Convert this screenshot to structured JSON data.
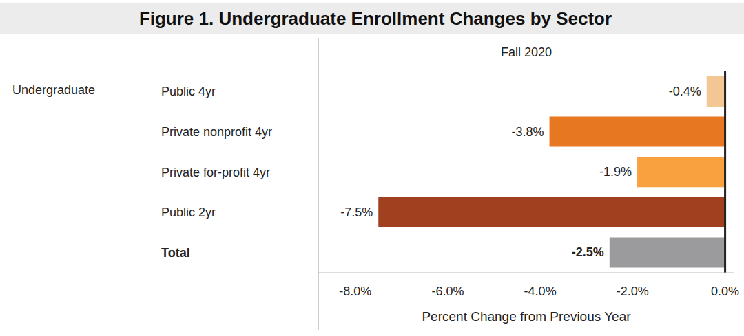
{
  "chart_data": {
    "type": "bar",
    "orientation": "horizontal",
    "title": "Figure 1. Undergraduate Enrollment Changes by Sector",
    "column_header": "Fall 2020",
    "row_group": "Undergraduate",
    "x_label": "Percent Change from Previous Year",
    "categories": [
      "Public 4yr",
      "Private nonprofit 4yr",
      "Private for-profit 4yr",
      "Public 2yr",
      "Total"
    ],
    "values": [
      -0.4,
      -3.8,
      -1.9,
      -7.5,
      -2.5
    ],
    "value_labels": [
      "-0.4%",
      "-3.8%",
      "-1.9%",
      "-7.5%",
      "-2.5%"
    ],
    "colors": [
      "#f2c794",
      "#e87722",
      "#f9a13f",
      "#a0401f",
      "#9b9a9d"
    ],
    "xlim": [
      -8.8,
      0.2
    ],
    "xticks": [
      {
        "value": -8,
        "label": "-8.0%"
      },
      {
        "value": -6,
        "label": "-6.0%"
      },
      {
        "value": -4,
        "label": "-4.0%"
      },
      {
        "value": -2,
        "label": "-2.0%"
      },
      {
        "value": 0,
        "label": "0.0%"
      }
    ],
    "data_labels": true,
    "grid": false
  }
}
